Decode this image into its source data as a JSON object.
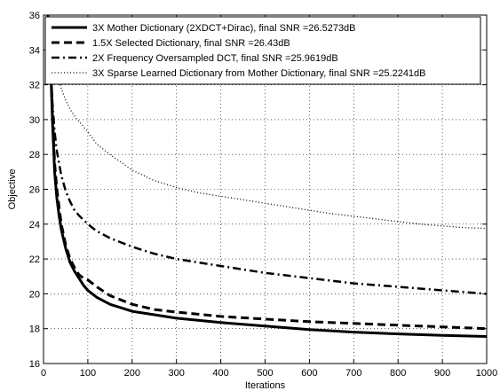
{
  "chart_data": {
    "type": "line",
    "xlabel": "Iterations",
    "ylabel": "Objective",
    "xlim": [
      0,
      1000
    ],
    "ylim": [
      16,
      36
    ],
    "xticks": [
      0,
      100,
      200,
      300,
      400,
      500,
      600,
      700,
      800,
      900,
      1000
    ],
    "yticks": [
      16,
      18,
      20,
      22,
      24,
      26,
      28,
      30,
      32,
      34,
      36
    ],
    "grid": true,
    "legend_position": "top",
    "series": [
      {
        "name": "3X Mother Dictionary (2XDCT+Dirac), final SNR =26.5273dB",
        "style": "solid-thick",
        "color": "#000000",
        "x": [
          10,
          15,
          20,
          25,
          30,
          35,
          40,
          50,
          60,
          70,
          80,
          90,
          100,
          120,
          150,
          200,
          250,
          300,
          400,
          500,
          600,
          700,
          800,
          900,
          1000
        ],
        "y": [
          36,
          34,
          30,
          27,
          25.5,
          24.5,
          23.7,
          22.6,
          21.8,
          21.3,
          20.9,
          20.5,
          20.2,
          19.8,
          19.4,
          19.0,
          18.8,
          18.6,
          18.35,
          18.15,
          17.95,
          17.8,
          17.7,
          17.62,
          17.55
        ]
      },
      {
        "name": "1.5X Selected Dictionary, final SNR =26.43dB",
        "style": "dashed",
        "color": "#000000",
        "x": [
          10,
          15,
          20,
          25,
          30,
          35,
          40,
          50,
          60,
          70,
          80,
          90,
          100,
          120,
          150,
          200,
          250,
          300,
          400,
          500,
          600,
          700,
          800,
          900,
          1000
        ],
        "y": [
          36,
          34,
          30.5,
          27.5,
          26,
          25,
          24,
          22.8,
          22,
          21.5,
          21.1,
          20.9,
          20.8,
          20.4,
          19.9,
          19.4,
          19.1,
          18.95,
          18.7,
          18.55,
          18.4,
          18.3,
          18.2,
          18.1,
          18.0
        ]
      },
      {
        "name": "2X Frequency Oversampled DCT, final SNR =25.9619dB",
        "style": "dashdot",
        "color": "#000000",
        "x": [
          10,
          15,
          20,
          25,
          30,
          40,
          50,
          60,
          70,
          80,
          100,
          120,
          150,
          200,
          250,
          300,
          400,
          500,
          600,
          700,
          800,
          900,
          1000
        ],
        "y": [
          36,
          33.5,
          31,
          29.3,
          28.2,
          26.8,
          25.9,
          25.3,
          24.8,
          24.5,
          24.0,
          23.6,
          23.2,
          22.7,
          22.3,
          22.0,
          21.6,
          21.2,
          20.9,
          20.6,
          20.4,
          20.2,
          20.0
        ]
      },
      {
        "name": "3X Sparse Learned Dictionary from Mother Dictionary, final SNR =25.2241dB",
        "style": "dotted",
        "color": "#000000",
        "x": [
          30,
          40,
          50,
          60,
          70,
          80,
          100,
          120,
          150,
          200,
          250,
          300,
          350,
          400,
          450,
          500,
          550,
          600,
          650,
          700,
          750,
          800,
          850,
          900,
          950,
          1000
        ],
        "y": [
          32.5,
          31.8,
          31.1,
          30.6,
          30.2,
          29.9,
          29.3,
          28.6,
          28.0,
          27.1,
          26.5,
          26.1,
          25.8,
          25.6,
          25.4,
          25.2,
          25.0,
          24.8,
          24.6,
          24.45,
          24.3,
          24.15,
          24.0,
          23.9,
          23.8,
          23.75
        ]
      }
    ]
  }
}
